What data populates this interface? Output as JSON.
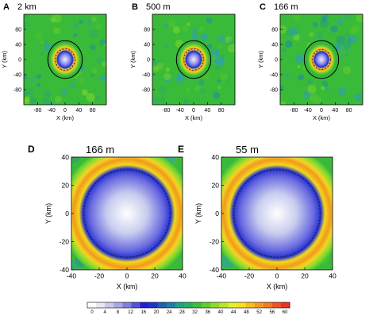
{
  "chart_data": [
    {
      "type": "heatmap",
      "panel_letter": "A",
      "title": "2 km",
      "xlabel": "X (km)",
      "ylabel": "Y (km)",
      "x_ticks": [
        -80,
        -40,
        0,
        40,
        80
      ],
      "y_ticks": [
        -80,
        -40,
        0,
        40,
        80
      ],
      "xlim": [
        -120,
        120
      ],
      "ylim": [
        -120,
        120
      ],
      "circle_radius": 50,
      "eye_radius": 14,
      "ring_radius": 28
    },
    {
      "type": "heatmap",
      "panel_letter": "B",
      "title": "500 m",
      "xlabel": "X (km)",
      "ylabel": "Y (km)",
      "x_ticks": [
        -80,
        -40,
        0,
        40,
        80
      ],
      "y_ticks": [
        -80,
        -40,
        0,
        40,
        80
      ],
      "xlim": [
        -120,
        120
      ],
      "ylim": [
        -120,
        120
      ],
      "circle_radius": 50,
      "eye_radius": 15,
      "ring_radius": 28
    },
    {
      "type": "heatmap",
      "panel_letter": "C",
      "title": "166 m",
      "xlabel": "X (km)",
      "ylabel": "Y (km)",
      "x_ticks": [
        -80,
        -40,
        0,
        40,
        80
      ],
      "y_ticks": [
        -80,
        -40,
        0,
        40,
        80
      ],
      "xlim": [
        -120,
        120
      ],
      "ylim": [
        -120,
        120
      ],
      "circle_radius": 50,
      "eye_radius": 13,
      "ring_radius": 26
    },
    {
      "type": "heatmap",
      "panel_letter": "D",
      "title": "166 m",
      "xlabel": "X (km)",
      "ylabel": "Y (km)",
      "x_ticks": [
        -40,
        -20,
        0,
        20,
        40
      ],
      "y_ticks": [
        -40,
        -20,
        0,
        20,
        40
      ],
      "xlim": [
        -40,
        40
      ],
      "ylim": [
        -40,
        40
      ],
      "eye_radius": 23,
      "ring_radius": 31
    },
    {
      "type": "heatmap",
      "panel_letter": "E",
      "title": "55 m",
      "xlabel": "X (km)",
      "ylabel": "Y (km)",
      "x_ticks": [
        -40,
        -20,
        0,
        20,
        40
      ],
      "y_ticks": [
        -40,
        -20,
        0,
        20,
        40
      ],
      "xlim": [
        -40,
        40
      ],
      "ylim": [
        -40,
        40
      ],
      "eye_radius": 23,
      "ring_radius": 31
    }
  ],
  "colorbar": {
    "ticks": [
      0,
      4,
      8,
      12,
      16,
      20,
      24,
      28,
      32,
      36,
      40,
      44,
      48,
      52,
      56,
      60
    ],
    "colors": [
      "#ffffff",
      "#e6e6f5",
      "#c8c8ee",
      "#a7a7e8",
      "#7f7fe0",
      "#5252db",
      "#1f1fd6",
      "#1737c7",
      "#1c60b0",
      "#1c7fa0",
      "#22a08a",
      "#27b060",
      "#3cbf3a",
      "#5ccf2c",
      "#8cdc2a",
      "#b8e62a",
      "#e3ee2c",
      "#f6e020",
      "#f8be1c",
      "#f79a1c",
      "#f37a20",
      "#ee5422",
      "#e93224"
    ]
  }
}
